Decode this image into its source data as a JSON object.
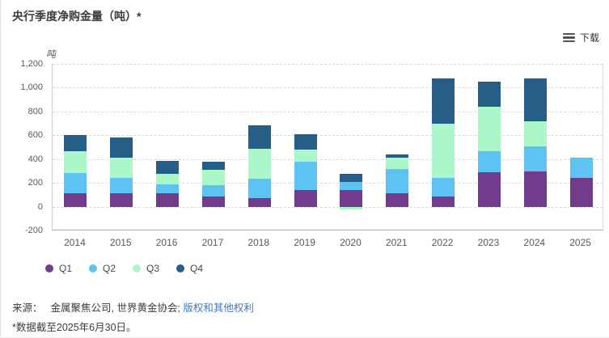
{
  "title": "央行季度净购金量（吨）*",
  "toolbar": {
    "download_label": "下载"
  },
  "chart_data": {
    "type": "bar",
    "stacked": true,
    "title": "央行季度净购金量（吨）*",
    "unit_label": "吨",
    "categories": [
      "2014",
      "2015",
      "2016",
      "2017",
      "2018",
      "2019",
      "2020",
      "2021",
      "2022",
      "2023",
      "2024",
      "2025"
    ],
    "series": [
      {
        "name": "Q1",
        "color": "#733b8c",
        "values": [
          115,
          110,
          113,
          87,
          70,
          140,
          140,
          110,
          85,
          288,
          298,
          244
        ]
      },
      {
        "name": "Q2",
        "color": "#5cc3f2",
        "values": [
          165,
          130,
          75,
          96,
          163,
          240,
          65,
          207,
          155,
          175,
          212,
          166
        ]
      },
      {
        "name": "Q3",
        "color": "#acf7c9",
        "values": [
          185,
          170,
          91,
          125,
          255,
          100,
          -20,
          95,
          460,
          380,
          210,
          0
        ]
      },
      {
        "name": "Q4",
        "color": "#265e87",
        "values": [
          140,
          170,
          103,
          68,
          193,
          130,
          70,
          30,
          380,
          210,
          360,
          0
        ]
      }
    ],
    "ylim": [
      -200,
      1200
    ],
    "ytick_step": 200,
    "ytick_labels": [
      "1,200",
      "1,000",
      "800",
      "600",
      "400",
      "200",
      "0",
      "-200"
    ],
    "grid": true,
    "legend_position": "bottom-left"
  },
  "footer": {
    "source_prefix": "来源：",
    "source_text": "金属聚焦公司, 世界黄金协会;",
    "source_link": "版权和其他权利",
    "footnote": "*数据截至2025年6月30日。"
  }
}
